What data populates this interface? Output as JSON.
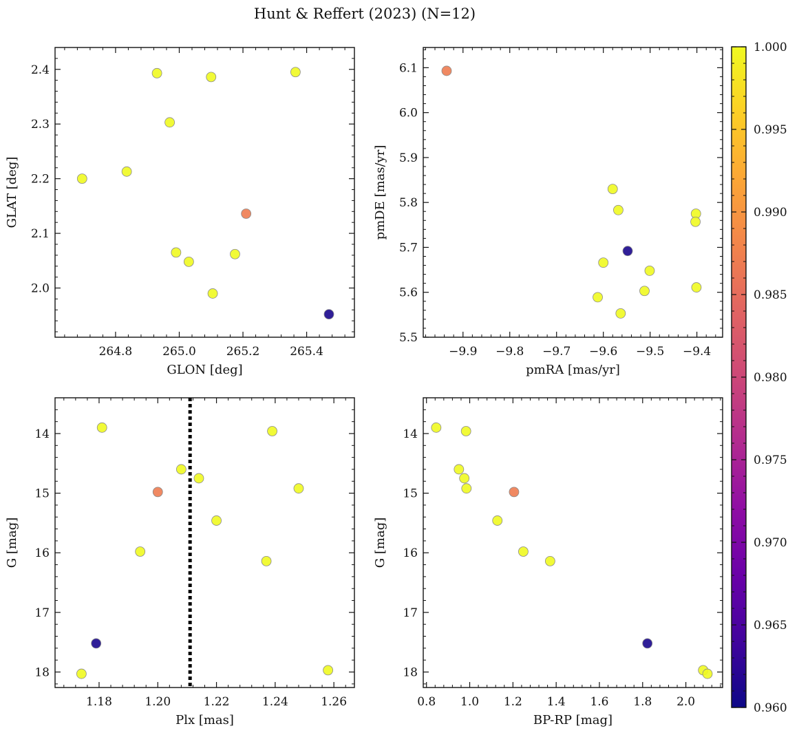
{
  "figure": {
    "title": "Hunt & Reffert (2023) (N=12)"
  },
  "chart_data": [
    {
      "id": "lonlat",
      "type": "scatter",
      "xlabel": "GLON [deg]",
      "ylabel": "GLAT [deg]",
      "xlim": [
        264.61,
        265.55
      ],
      "ylim": [
        1.91,
        2.44
      ],
      "xticks": [
        264.8,
        265.0,
        265.2,
        265.4
      ],
      "xticklabels": [
        "264.8",
        "265.0",
        "265.2",
        "265.4"
      ],
      "yticks": [
        2.0,
        2.1,
        2.2,
        2.3,
        2.4
      ],
      "yticklabels": [
        "2.0",
        "2.1",
        "2.2",
        "2.3",
        "2.4"
      ],
      "points": [
        {
          "x": 264.695,
          "y": 2.2,
          "c": 1.0
        },
        {
          "x": 264.835,
          "y": 2.213,
          "c": 1.0
        },
        {
          "x": 264.93,
          "y": 2.393,
          "c": 1.0
        },
        {
          "x": 264.97,
          "y": 2.303,
          "c": 1.0
        },
        {
          "x": 264.99,
          "y": 2.065,
          "c": 1.0
        },
        {
          "x": 265.03,
          "y": 2.048,
          "c": 1.0
        },
        {
          "x": 265.1,
          "y": 2.386,
          "c": 1.0
        },
        {
          "x": 265.105,
          "y": 1.99,
          "c": 1.0
        },
        {
          "x": 265.175,
          "y": 2.062,
          "c": 1.0
        },
        {
          "x": 265.21,
          "y": 2.136,
          "c": 0.987
        },
        {
          "x": 265.365,
          "y": 2.395,
          "c": 1.0
        },
        {
          "x": 265.47,
          "y": 1.952,
          "c": 0.961
        }
      ]
    },
    {
      "id": "pm",
      "type": "scatter",
      "xlabel": "pmRA [mas/yr]",
      "ylabel": "pmDE [mas/yr]",
      "xlim": [
        -9.985,
        -9.345
      ],
      "ylim": [
        5.5,
        6.145
      ],
      "xticks": [
        -9.9,
        -9.8,
        -9.7,
        -9.6,
        -9.5,
        -9.4
      ],
      "xticklabels": [
        "−9.9",
        "−9.8",
        "−9.7",
        "−9.6",
        "−9.5",
        "−9.4"
      ],
      "yticks": [
        5.5,
        5.6,
        5.7,
        5.8,
        5.9,
        6.0,
        6.1
      ],
      "yticklabels": [
        "5.5",
        "5.6",
        "5.7",
        "5.8",
        "5.9",
        "6.0",
        "6.1"
      ],
      "points": [
        {
          "x": -9.935,
          "y": 6.093,
          "c": 0.987
        },
        {
          "x": -9.58,
          "y": 5.83,
          "c": 1.0
        },
        {
          "x": -9.568,
          "y": 5.783,
          "c": 1.0
        },
        {
          "x": -9.548,
          "y": 5.692,
          "c": 0.961
        },
        {
          "x": -9.6,
          "y": 5.666,
          "c": 1.0
        },
        {
          "x": -9.612,
          "y": 5.589,
          "c": 1.0
        },
        {
          "x": -9.563,
          "y": 5.553,
          "c": 1.0
        },
        {
          "x": -9.512,
          "y": 5.603,
          "c": 1.0
        },
        {
          "x": -9.501,
          "y": 5.648,
          "c": 1.0
        },
        {
          "x": -9.402,
          "y": 5.775,
          "c": 1.0
        },
        {
          "x": -9.403,
          "y": 5.757,
          "c": 1.0
        },
        {
          "x": -9.401,
          "y": 5.611,
          "c": 1.0
        }
      ]
    },
    {
      "id": "plx",
      "type": "scatter",
      "xlabel": "Plx [mas]",
      "ylabel": "G [mag]",
      "xlim": [
        1.165,
        1.267
      ],
      "ylim": [
        18.26,
        13.4
      ],
      "xticks": [
        1.18,
        1.2,
        1.22,
        1.24,
        1.26
      ],
      "xticklabels": [
        "1.18",
        "1.20",
        "1.22",
        "1.24",
        "1.26"
      ],
      "yticks": [
        14,
        15,
        16,
        17,
        18
      ],
      "yticklabels": [
        "14",
        "15",
        "16",
        "17",
        "18"
      ],
      "vline": {
        "x": 1.211,
        "style": "dotted"
      },
      "points": [
        {
          "x": 1.181,
          "y": 13.9,
          "c": 1.0
        },
        {
          "x": 1.239,
          "y": 13.96,
          "c": 1.0
        },
        {
          "x": 1.208,
          "y": 14.6,
          "c": 1.0
        },
        {
          "x": 1.214,
          "y": 14.75,
          "c": 1.0
        },
        {
          "x": 1.248,
          "y": 14.92,
          "c": 1.0
        },
        {
          "x": 1.2,
          "y": 14.98,
          "c": 0.987
        },
        {
          "x": 1.22,
          "y": 15.46,
          "c": 1.0
        },
        {
          "x": 1.194,
          "y": 15.98,
          "c": 1.0
        },
        {
          "x": 1.237,
          "y": 16.14,
          "c": 1.0
        },
        {
          "x": 1.179,
          "y": 17.52,
          "c": 0.961
        },
        {
          "x": 1.258,
          "y": 17.97,
          "c": 1.0
        },
        {
          "x": 1.174,
          "y": 18.03,
          "c": 1.0
        }
      ]
    },
    {
      "id": "cmd",
      "type": "scatter",
      "xlabel": "BP-RP [mag]",
      "ylabel": "G [mag]",
      "xlim": [
        0.785,
        2.17
      ],
      "ylim": [
        18.26,
        13.4
      ],
      "xticks": [
        0.8,
        1.0,
        1.2,
        1.4,
        1.6,
        1.8,
        2.0
      ],
      "xticklabels": [
        "0.8",
        "1.0",
        "1.2",
        "1.4",
        "1.6",
        "1.8",
        "2.0"
      ],
      "yticks": [
        14,
        15,
        16,
        17,
        18
      ],
      "yticklabels": [
        "14",
        "15",
        "16",
        "17",
        "18"
      ],
      "points": [
        {
          "x": 0.845,
          "y": 13.9,
          "c": 1.0
        },
        {
          "x": 0.983,
          "y": 13.96,
          "c": 1.0
        },
        {
          "x": 0.95,
          "y": 14.6,
          "c": 1.0
        },
        {
          "x": 0.975,
          "y": 14.75,
          "c": 1.0
        },
        {
          "x": 0.985,
          "y": 14.92,
          "c": 1.0
        },
        {
          "x": 1.205,
          "y": 14.98,
          "c": 0.987
        },
        {
          "x": 1.128,
          "y": 15.46,
          "c": 1.0
        },
        {
          "x": 1.248,
          "y": 15.98,
          "c": 1.0
        },
        {
          "x": 1.372,
          "y": 16.14,
          "c": 1.0
        },
        {
          "x": 1.822,
          "y": 17.52,
          "c": 0.961
        },
        {
          "x": 2.08,
          "y": 17.97,
          "c": 1.0
        },
        {
          "x": 2.1,
          "y": 18.03,
          "c": 1.0
        }
      ]
    }
  ],
  "colorbar": {
    "colormap": "plasma",
    "range": [
      0.96,
      1.0
    ],
    "ticks": [
      0.96,
      0.965,
      0.97,
      0.975,
      0.98,
      0.985,
      0.99,
      0.995,
      1.0
    ],
    "ticklabels": [
      "0.960",
      "0.965",
      "0.970",
      "0.975",
      "0.980",
      "0.985",
      "0.990",
      "0.995",
      "1.000"
    ]
  },
  "colors": {
    "marker_edge": "#8a8a8a",
    "axis": "#111111",
    "vline": "#000000"
  }
}
